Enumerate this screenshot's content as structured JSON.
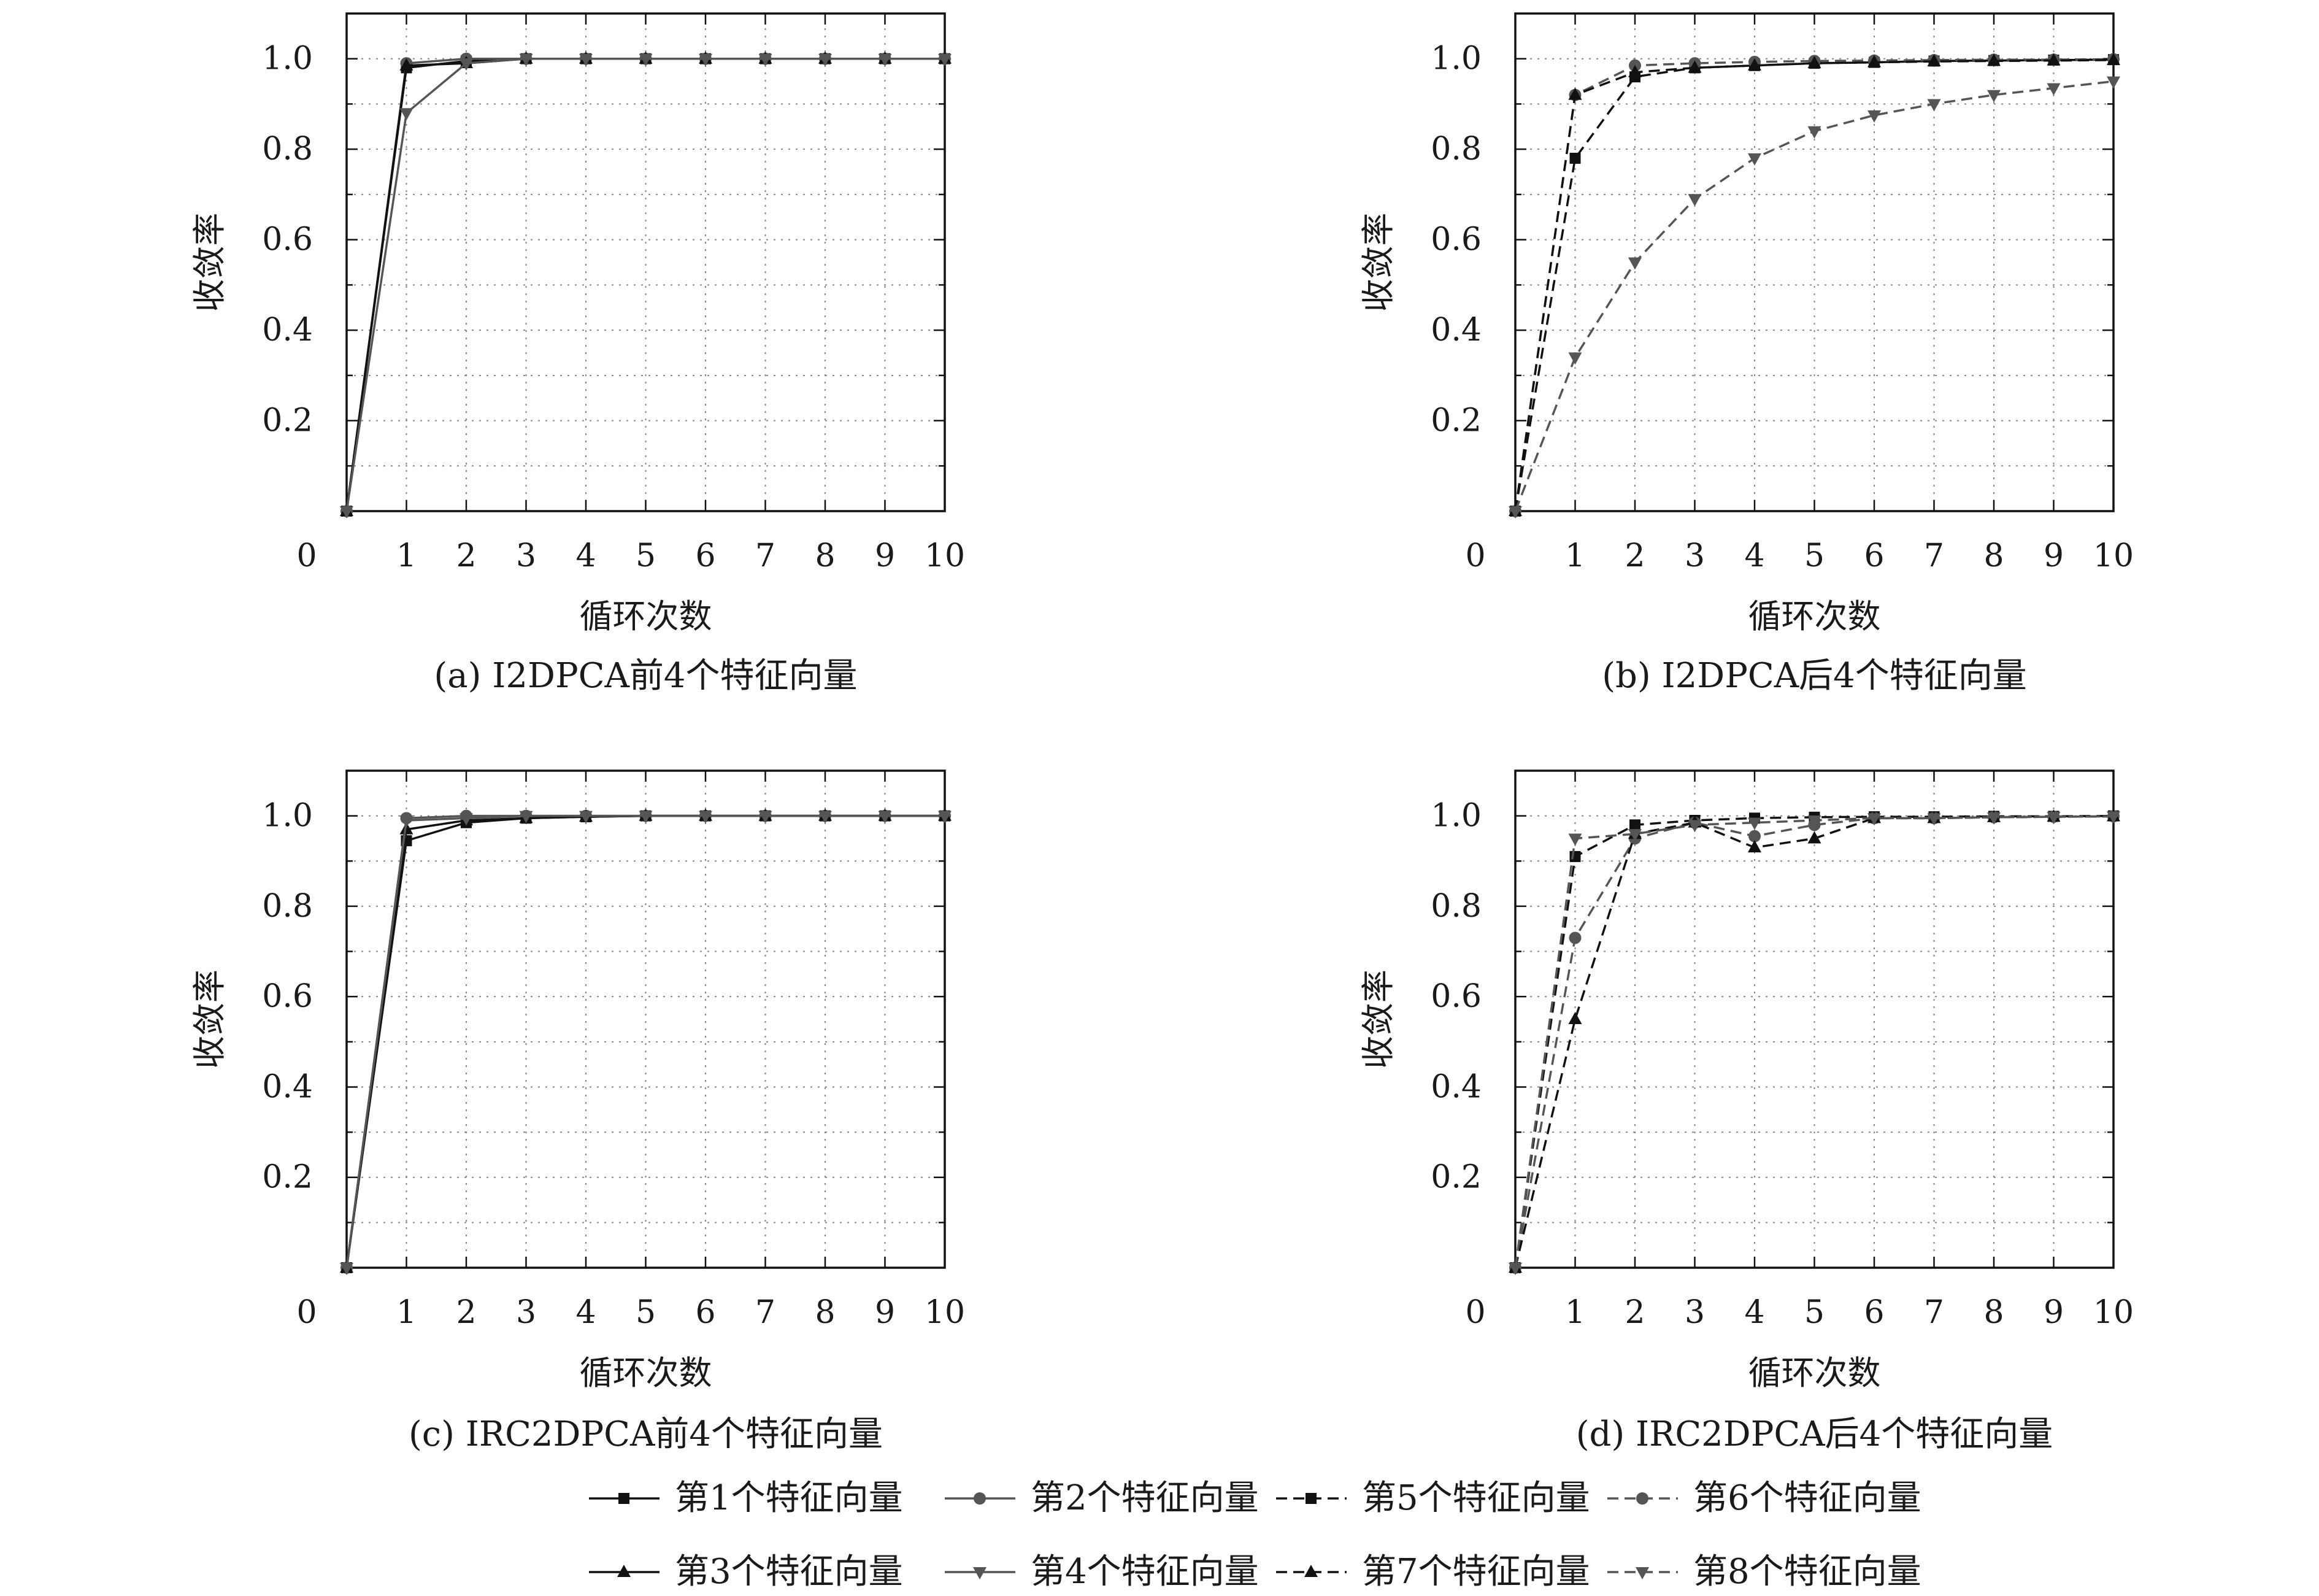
{
  "charts": [
    {
      "caption": "(a) I2DPCA前4个特征向量",
      "xlabel": "循环次数",
      "ylabel": "收敛率"
    },
    {
      "caption": "(b) I2DPCA后4个特征向量",
      "xlabel": "循环次数",
      "ylabel": "收敛率"
    },
    {
      "caption": "(c) IRC2DPCA前4个特征向量",
      "xlabel": "循环次数",
      "ylabel": "收敛率"
    },
    {
      "caption": "(d) IRC2DPCA后4个特征向量",
      "xlabel": "循环次数",
      "ylabel": "收敛率"
    }
  ],
  "legend": {
    "items": [
      {
        "label": "第1个特征向量",
        "style": "solid",
        "marker": "square",
        "color": "#111111"
      },
      {
        "label": "第2个特征向量",
        "style": "solid",
        "marker": "circle",
        "color": "#555555"
      },
      {
        "label": "第5个特征向量",
        "style": "dashed",
        "marker": "square",
        "color": "#111111"
      },
      {
        "label": "第6个特征向量",
        "style": "dashed",
        "marker": "circle",
        "color": "#555555"
      },
      {
        "label": "第3个特征向量",
        "style": "solid",
        "marker": "triangle-up",
        "color": "#111111"
      },
      {
        "label": "第4个特征向量",
        "style": "solid",
        "marker": "triangle-down",
        "color": "#555555"
      },
      {
        "label": "第7个特征向量",
        "style": "dashed",
        "marker": "triangle-up",
        "color": "#111111"
      },
      {
        "label": "第8个特征向量",
        "style": "dashed",
        "marker": "triangle-down",
        "color": "#555555"
      }
    ]
  },
  "chart_data": [
    {
      "type": "line",
      "xlim": [
        0,
        10
      ],
      "ylim": [
        0,
        1.1
      ],
      "x_ticks": [
        0,
        1,
        2,
        3,
        4,
        5,
        6,
        7,
        8,
        9,
        10
      ],
      "y_ticks": [
        0.2,
        0.4,
        0.6,
        0.8,
        1.0
      ],
      "y_tick_labels": [
        "0.2",
        "0.4",
        "0.6",
        "0.8",
        "1.0"
      ],
      "grid": true,
      "x": [
        0,
        1,
        2,
        3,
        4,
        5,
        6,
        7,
        8,
        9,
        10
      ],
      "series": [
        {
          "name": "第1个特征向量",
          "style": "solid",
          "marker": "square",
          "color": "#111111",
          "values": [
            0,
            0.98,
            0.995,
            1.0,
            1.0,
            1.0,
            1.0,
            1.0,
            1.0,
            1.0,
            1.0
          ]
        },
        {
          "name": "第2个特征向量",
          "style": "solid",
          "marker": "circle",
          "color": "#555555",
          "values": [
            0,
            0.99,
            1.0,
            1.0,
            1.0,
            1.0,
            1.0,
            1.0,
            1.0,
            1.0,
            1.0
          ]
        },
        {
          "name": "第3个特征向量",
          "style": "solid",
          "marker": "triangle-up",
          "color": "#111111",
          "values": [
            0,
            0.985,
            0.99,
            1.0,
            1.0,
            1.0,
            1.0,
            1.0,
            1.0,
            1.0,
            1.0
          ]
        },
        {
          "name": "第4个特征向量",
          "style": "solid",
          "marker": "triangle-down",
          "color": "#555555",
          "values": [
            0,
            0.88,
            0.99,
            1.0,
            1.0,
            1.0,
            1.0,
            1.0,
            1.0,
            1.0,
            1.0
          ]
        }
      ]
    },
    {
      "type": "line",
      "xlim": [
        0,
        10
      ],
      "ylim": [
        0,
        1.1
      ],
      "x_ticks": [
        0,
        1,
        2,
        3,
        4,
        5,
        6,
        7,
        8,
        9,
        10
      ],
      "y_ticks": [
        0.2,
        0.4,
        0.6,
        0.8,
        1.0
      ],
      "y_tick_labels": [
        "0.2",
        "0.4",
        "0.6",
        "0.8",
        "1.0"
      ],
      "grid": true,
      "x": [
        0,
        1,
        2,
        3,
        4,
        5,
        6,
        7,
        8,
        9,
        10
      ],
      "series": [
        {
          "name": "第5个特征向量",
          "style": "dashed",
          "marker": "square",
          "color": "#111111",
          "values": [
            0,
            0.78,
            0.96,
            0.98,
            0.985,
            0.99,
            0.992,
            0.995,
            0.996,
            0.997,
            0.998
          ]
        },
        {
          "name": "第6个特征向量",
          "style": "dashed",
          "marker": "circle",
          "color": "#555555",
          "values": [
            0,
            0.92,
            0.985,
            0.99,
            0.993,
            0.995,
            0.996,
            0.997,
            0.998,
            0.998,
            0.999
          ]
        },
        {
          "name": "第7个特征向量",
          "style": "dashed",
          "marker": "triangle-up",
          "color": "#111111",
          "values": [
            0,
            0.92,
            0.97,
            0.98,
            0.985,
            0.99,
            0.992,
            0.994,
            0.995,
            0.996,
            0.997
          ]
        },
        {
          "name": "第8个特征向量",
          "style": "dashed",
          "marker": "triangle-down",
          "color": "#555555",
          "values": [
            0,
            0.34,
            0.55,
            0.69,
            0.78,
            0.84,
            0.875,
            0.9,
            0.92,
            0.935,
            0.95
          ]
        }
      ]
    },
    {
      "type": "line",
      "xlim": [
        0,
        10
      ],
      "ylim": [
        0,
        1.1
      ],
      "x_ticks": [
        0,
        1,
        2,
        3,
        4,
        5,
        6,
        7,
        8,
        9,
        10
      ],
      "y_ticks": [
        0.2,
        0.4,
        0.6,
        0.8,
        1.0
      ],
      "y_tick_labels": [
        "0.2",
        "0.4",
        "0.6",
        "0.8",
        "1.0"
      ],
      "grid": true,
      "x": [
        0,
        1,
        2,
        3,
        4,
        5,
        6,
        7,
        8,
        9,
        10
      ],
      "series": [
        {
          "name": "第1个特征向量",
          "style": "solid",
          "marker": "square",
          "color": "#111111",
          "values": [
            0,
            0.945,
            0.985,
            0.995,
            0.998,
            1.0,
            1.0,
            1.0,
            1.0,
            1.0,
            1.0
          ]
        },
        {
          "name": "第2个特征向量",
          "style": "solid",
          "marker": "circle",
          "color": "#555555",
          "values": [
            0,
            0.995,
            1.0,
            1.0,
            1.0,
            1.0,
            1.0,
            1.0,
            1.0,
            1.0,
            1.0
          ]
        },
        {
          "name": "第3个特征向量",
          "style": "solid",
          "marker": "triangle-up",
          "color": "#111111",
          "values": [
            0,
            0.97,
            0.99,
            0.995,
            0.998,
            1.0,
            1.0,
            1.0,
            1.0,
            1.0,
            1.0
          ]
        },
        {
          "name": "第4个特征向量",
          "style": "solid",
          "marker": "triangle-down",
          "color": "#555555",
          "values": [
            0,
            0.99,
            0.995,
            1.0,
            1.0,
            1.0,
            1.0,
            1.0,
            1.0,
            1.0,
            1.0
          ]
        }
      ]
    },
    {
      "type": "line",
      "xlim": [
        0,
        10
      ],
      "ylim": [
        0,
        1.1
      ],
      "x_ticks": [
        0,
        1,
        2,
        3,
        4,
        5,
        6,
        7,
        8,
        9,
        10
      ],
      "y_ticks": [
        0.2,
        0.4,
        0.6,
        0.8,
        1.0
      ],
      "y_tick_labels": [
        "0.2",
        "0.4",
        "0.6",
        "0.8",
        "1.0"
      ],
      "grid": true,
      "x": [
        0,
        1,
        2,
        3,
        4,
        5,
        6,
        7,
        8,
        9,
        10
      ],
      "series": [
        {
          "name": "第5个特征向量",
          "style": "dashed",
          "marker": "square",
          "color": "#111111",
          "values": [
            0,
            0.91,
            0.98,
            0.99,
            0.995,
            0.997,
            0.998,
            0.998,
            0.999,
            0.999,
            1.0
          ]
        },
        {
          "name": "第6个特征向量",
          "style": "dashed",
          "marker": "circle",
          "color": "#555555",
          "values": [
            0,
            0.73,
            0.95,
            0.985,
            0.955,
            0.98,
            0.995,
            0.995,
            0.997,
            0.998,
            0.999
          ]
        },
        {
          "name": "第7个特征向量",
          "style": "dashed",
          "marker": "triangle-up",
          "color": "#111111",
          "values": [
            0,
            0.55,
            0.96,
            0.985,
            0.93,
            0.95,
            0.995,
            0.995,
            0.997,
            0.998,
            0.999
          ]
        },
        {
          "name": "第8个特征向量",
          "style": "dashed",
          "marker": "triangle-down",
          "color": "#555555",
          "values": [
            0,
            0.95,
            0.96,
            0.98,
            0.985,
            0.99,
            0.995,
            0.995,
            0.997,
            0.998,
            0.999
          ]
        }
      ]
    }
  ]
}
